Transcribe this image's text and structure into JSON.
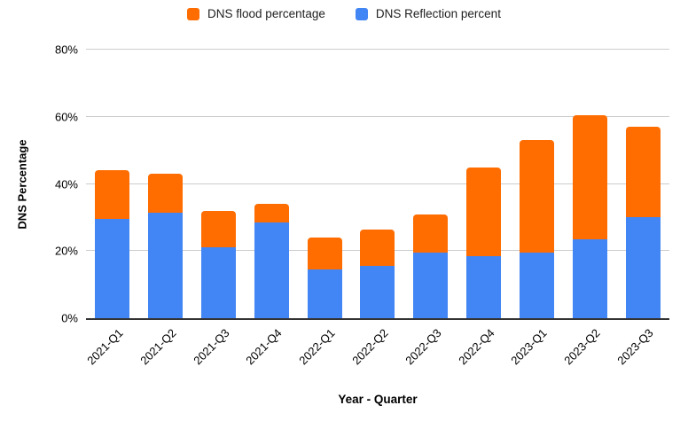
{
  "chart_data": {
    "type": "bar",
    "stacked": true,
    "categories": [
      "2021-Q1",
      "2021-Q2",
      "2021-Q3",
      "2021-Q4",
      "2022-Q1",
      "2022-Q2",
      "2022-Q3",
      "2022-Q4",
      "2023-Q1",
      "2023-Q2",
      "2023-Q3"
    ],
    "series": [
      {
        "name": "DNS flood percentage",
        "color": "#FF6D01",
        "values": [
          14.5,
          11.5,
          11,
          5.5,
          9.5,
          11,
          11.5,
          26.5,
          33.5,
          37,
          27
        ]
      },
      {
        "name": "DNS Reflection percent",
        "color": "#4285F4",
        "values": [
          29.5,
          31.5,
          21,
          28.5,
          14.5,
          15.5,
          19.5,
          18.5,
          19.5,
          23.5,
          30
        ]
      }
    ],
    "totals": [
      44,
      43,
      32,
      34,
      24,
      26.5,
      31,
      45,
      53,
      60.5,
      57
    ],
    "xlabel": "Year - Quarter",
    "ylabel": "DNS Percentage",
    "ylim": [
      0,
      80
    ],
    "y_ticks": [
      {
        "value": 0,
        "label": "0%"
      },
      {
        "value": 20,
        "label": "20%"
      },
      {
        "value": 40,
        "label": "40%"
      },
      {
        "value": 60,
        "label": "60%"
      },
      {
        "value": 80,
        "label": "80%"
      }
    ],
    "grid": true,
    "legend_position": "top"
  },
  "colors": {
    "flood_orange": "#FF6D01",
    "reflection_blue": "#4285F4",
    "gridline": "#cccccc",
    "axis_line": "#333333",
    "background": "#ffffff"
  }
}
